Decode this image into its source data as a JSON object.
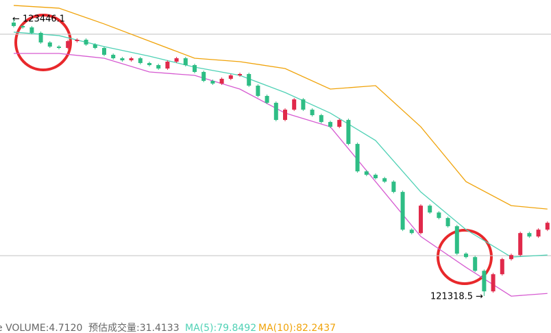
{
  "chart_data": {
    "type": "candlestick",
    "ylim": [
      121171.1,
      123593.6
    ],
    "up_color": "#e0294a",
    "down_color": "#2ebd85",
    "open": [
      123420.0,
      123393.7,
      123383.2,
      123341.0,
      123267.3,
      123235.6,
      123225.1,
      123277.8,
      123288.3,
      123251.4,
      123225.1,
      123172.4,
      123146.0,
      123130.2,
      123146.0,
      123109.2,
      123093.3,
      123067.0,
      123119.7,
      123146.0,
      123093.3,
      123040.6,
      122972.1,
      122951.1,
      122987.9,
      123014.3,
      123024.8,
      122935.2,
      122856.2,
      122803.5,
      122671.7,
      122750.8,
      122829.8,
      122750.8,
      122708.6,
      122655.9,
      122619.0,
      122671.7,
      122487.3,
      122276.5,
      122250.1,
      122223.8,
      122197.4,
      122118.4,
      121828.5,
      121802.2,
      122013.0,
      121960.3,
      121918.1,
      121854.9,
      121644.1,
      121617.7,
      121512.3,
      121354.2,
      121486.0,
      121601.9,
      121633.6,
      121802.2,
      121775.8,
      121828.5
    ],
    "close": [
      123393.7,
      123383.2,
      123341.0,
      123267.3,
      123235.6,
      123225.1,
      123277.8,
      123288.3,
      123251.4,
      123225.1,
      123172.4,
      123146.0,
      123130.2,
      123146.0,
      123109.2,
      123093.3,
      123067.0,
      123119.7,
      123146.0,
      123093.3,
      123040.6,
      122972.1,
      122951.1,
      122987.9,
      123014.3,
      123024.8,
      122935.2,
      122856.2,
      122803.5,
      122671.7,
      122750.8,
      122829.8,
      122750.8,
      122708.6,
      122655.9,
      122619.0,
      122671.7,
      122487.3,
      122276.5,
      122250.1,
      122223.8,
      122197.4,
      122118.4,
      121828.5,
      121802.2,
      122013.0,
      121960.3,
      121918.1,
      121854.9,
      121644.1,
      121617.7,
      121512.3,
      121354.2,
      121486.0,
      121601.9,
      121633.6,
      121802.2,
      121775.8,
      121828.5,
      121881.2
    ],
    "high": [
      123446.1,
      123404.2,
      123393.7,
      123351.5,
      123277.8,
      123246.1,
      123288.3,
      123298.8,
      123298.8,
      123261.9,
      123235.6,
      123182.9,
      123156.5,
      123156.5,
      123156.5,
      123119.7,
      123103.8,
      123130.2,
      123156.5,
      123156.5,
      123103.8,
      123051.1,
      122982.6,
      122998.4,
      123024.8,
      123035.3,
      123035.3,
      122945.7,
      122866.7,
      122814.0,
      122761.3,
      122840.3,
      122840.3,
      122761.3,
      122719.1,
      122666.4,
      122682.2,
      122682.2,
      122497.8,
      122287.0,
      122260.6,
      122234.3,
      122207.9,
      122128.9,
      121839.0,
      122023.5,
      122023.5,
      121970.8,
      121928.6,
      121865.4,
      121654.6,
      121628.2,
      121522.8,
      121496.5,
      121612.4,
      121644.1,
      121812.7,
      121812.7,
      121839.0,
      121891.7
    ],
    "low": [
      123383.2,
      123372.7,
      123330.5,
      123256.8,
      123225.1,
      123214.6,
      123214.6,
      123267.3,
      123240.9,
      123214.6,
      123161.9,
      123135.5,
      123119.7,
      123119.7,
      123098.7,
      123082.8,
      123056.5,
      123056.5,
      123109.2,
      123082.8,
      123030.1,
      122961.6,
      122940.6,
      122940.6,
      122977.4,
      123003.8,
      122924.7,
      122845.7,
      122793.0,
      122661.2,
      122661.2,
      122740.3,
      122740.3,
      122698.1,
      122645.4,
      122608.5,
      122608.5,
      122476.8,
      122266.0,
      122239.6,
      122213.3,
      122186.9,
      122107.9,
      121818.0,
      121791.7,
      121791.7,
      121949.8,
      121907.6,
      121844.4,
      121633.6,
      121607.2,
      121501.8,
      121318.5,
      121343.7,
      121475.5,
      121591.4,
      121623.1,
      121765.3,
      121765.3,
      121817.9
    ],
    "bands": [
      {
        "color": "#f0a30a",
        "x": [
          0,
          5,
          10,
          15,
          20,
          25,
          30,
          35,
          40,
          45,
          50,
          55,
          59
        ],
        "values": [
          123551.8,
          123530.8,
          123409.6,
          123277.8,
          123146.0,
          123119.7,
          123067.0,
          122908.9,
          122935.3,
          122619.1,
          122197.5,
          122013.0,
          121986.7
        ]
      },
      {
        "color": "#4fd1b5",
        "x": [
          0,
          5,
          10,
          15,
          20,
          25,
          30,
          35,
          40,
          45,
          50,
          55,
          59
        ],
        "values": [
          123346.3,
          123320.0,
          123235.6,
          123161.9,
          123077.5,
          123014.3,
          122882.6,
          122724.5,
          122513.7,
          122118.4,
          121828.6,
          121617.8,
          121633.6
        ]
      },
      {
        "color": "#d65ad1",
        "x": [
          0,
          5,
          10,
          15,
          20,
          25,
          30,
          35,
          40,
          45,
          50,
          55,
          59
        ],
        "values": [
          123183.0,
          123183.0,
          123146.0,
          123040.7,
          123014.3,
          122908.9,
          122724.5,
          122619.1,
          122197.5,
          121775.9,
          121538.7,
          121317.4,
          121338.4
        ]
      }
    ],
    "price_lines": [
      123330.5,
      121628.3
    ],
    "max_label": "← 123446.1",
    "min_label": "121318.5 →",
    "footer": [
      {
        "text": "e VOLUME:4.7120",
        "color": "#666666"
      },
      {
        "text": "预估成交量:31.4133",
        "color": "#666666"
      },
      {
        "text": "MA(5):79.8492",
        "color": "#4fd1b5"
      },
      {
        "text": "MA(10):82.2437",
        "color": "#f0a30a"
      }
    ]
  }
}
